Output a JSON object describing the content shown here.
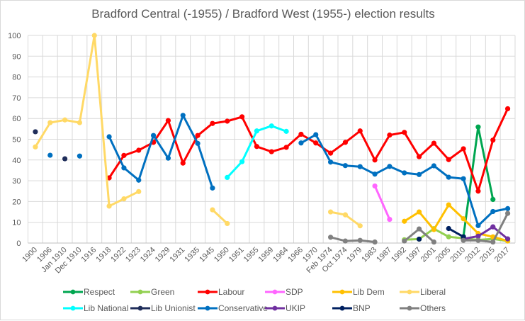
{
  "chart_data": {
    "type": "line",
    "title": "Bradford Central (-1955) / Bradford West (1955-) election results",
    "xlabel": "",
    "ylabel": "",
    "ylim": [
      0,
      100
    ],
    "yticks": [
      0,
      10,
      20,
      30,
      40,
      50,
      60,
      70,
      80,
      90,
      100
    ],
    "grid": true,
    "legend_position": "bottom",
    "categories": [
      "1900",
      "1906",
      "Jan 1910",
      "Dec 1910",
      "1916",
      "1918",
      "1922",
      "1923",
      "1924",
      "1929",
      "1931",
      "1935",
      "1945",
      "1950",
      "1951",
      "1955",
      "1959",
      "1964",
      "1966",
      "1970",
      "Feb 1974",
      "Oct 1974",
      "1979",
      "1983",
      "1987",
      "1992",
      "1997",
      "2001",
      "2005",
      "2010",
      "2012",
      "2015",
      "2017"
    ],
    "series": [
      {
        "name": "Respect",
        "color": "#00a650",
        "values": [
          null,
          null,
          null,
          null,
          null,
          null,
          null,
          null,
          null,
          null,
          null,
          null,
          null,
          null,
          null,
          null,
          null,
          null,
          null,
          null,
          null,
          null,
          null,
          null,
          null,
          null,
          null,
          null,
          null,
          3.1,
          55.9,
          21.0,
          null
        ]
      },
      {
        "name": "Green",
        "color": "#92d050",
        "values": [
          null,
          null,
          null,
          null,
          null,
          null,
          null,
          null,
          null,
          null,
          null,
          null,
          null,
          null,
          null,
          null,
          null,
          null,
          null,
          null,
          null,
          null,
          null,
          null,
          null,
          1.6,
          1.9,
          6.9,
          3.0,
          2.3,
          1.5,
          2.0,
          1.0
        ]
      },
      {
        "name": "Labour",
        "color": "#ff0000",
        "values": [
          null,
          null,
          null,
          null,
          null,
          31.4,
          42.2,
          44.7,
          48.5,
          59.0,
          38.5,
          51.8,
          57.6,
          58.7,
          60.8,
          46.5,
          44.0,
          46.1,
          52.4,
          48.2,
          43.3,
          48.5,
          54.0,
          40.0,
          52.0,
          53.3,
          41.6,
          48.1,
          40.2,
          45.4,
          25.0,
          49.6,
          64.7
        ]
      },
      {
        "name": "SDP",
        "color": "#ff66ff",
        "values": [
          null,
          null,
          null,
          null,
          null,
          null,
          null,
          null,
          null,
          null,
          null,
          null,
          null,
          null,
          null,
          null,
          null,
          null,
          null,
          null,
          null,
          null,
          null,
          27.5,
          11.4,
          null,
          null,
          null,
          null,
          null,
          null,
          null,
          null
        ]
      },
      {
        "name": "Lib Dem",
        "color": "#ffc000",
        "values": [
          null,
          null,
          null,
          null,
          null,
          null,
          null,
          null,
          null,
          null,
          null,
          null,
          null,
          null,
          null,
          null,
          null,
          null,
          null,
          null,
          null,
          null,
          null,
          null,
          null,
          10.5,
          15.0,
          6.5,
          18.4,
          11.7,
          4.6,
          3.0,
          1.0
        ]
      },
      {
        "name": "Liberal",
        "color": "#ffd966",
        "values": [
          46.3,
          58.0,
          59.3,
          58.0,
          100,
          17.8,
          21.3,
          24.8,
          null,
          null,
          null,
          null,
          16.0,
          9.4,
          null,
          null,
          null,
          null,
          null,
          null,
          15.0,
          13.6,
          8.3,
          null,
          null,
          null,
          null,
          null,
          null,
          null,
          null,
          null,
          null
        ]
      },
      {
        "name": "Lib National",
        "color": "#00ffff",
        "values": [
          null,
          null,
          null,
          null,
          null,
          null,
          null,
          null,
          null,
          null,
          null,
          null,
          null,
          31.6,
          39.2,
          54.0,
          56.4,
          53.8,
          null,
          null,
          null,
          null,
          null,
          null,
          null,
          null,
          null,
          null,
          null,
          null,
          null,
          null,
          null
        ]
      },
      {
        "name": "Lib Unionist",
        "color": "#1f2d5a",
        "values": [
          53.6,
          null,
          40.6,
          null,
          null,
          null,
          null,
          null,
          null,
          null,
          null,
          null,
          null,
          null,
          null,
          null,
          null,
          null,
          null,
          null,
          null,
          null,
          null,
          null,
          null,
          null,
          null,
          null,
          null,
          null,
          null,
          null,
          null
        ]
      },
      {
        "name": "Conservative",
        "color": "#0070c0",
        "values": [
          null,
          42.3,
          null,
          41.9,
          null,
          51.2,
          36.2,
          30.3,
          51.8,
          40.9,
          61.5,
          48.0,
          26.5,
          null,
          null,
          null,
          null,
          null,
          48.2,
          52.2,
          39.0,
          37.3,
          36.8,
          33.2,
          36.9,
          33.8,
          33.0,
          37.2,
          31.7,
          31.0,
          8.4,
          15.2,
          16.6
        ]
      },
      {
        "name": "UKIP",
        "color": "#7030a0",
        "values": [
          null,
          null,
          null,
          null,
          null,
          null,
          null,
          null,
          null,
          null,
          null,
          null,
          null,
          null,
          null,
          null,
          null,
          null,
          null,
          null,
          null,
          null,
          null,
          null,
          null,
          null,
          null,
          null,
          null,
          2.0,
          3.3,
          7.8,
          2.0
        ]
      },
      {
        "name": "BNP",
        "color": "#002060",
        "values": [
          null,
          null,
          null,
          null,
          null,
          null,
          null,
          null,
          null,
          null,
          null,
          null,
          null,
          null,
          null,
          null,
          null,
          null,
          null,
          null,
          null,
          null,
          null,
          null,
          null,
          null,
          1.9,
          null,
          7.0,
          3.0,
          null,
          null,
          null
        ]
      },
      {
        "name": "Others",
        "color": "#808080",
        "values": [
          null,
          null,
          null,
          null,
          null,
          null,
          null,
          null,
          null,
          null,
          null,
          null,
          null,
          null,
          null,
          null,
          null,
          null,
          null,
          null,
          2.8,
          1.0,
          1.3,
          0.5,
          null,
          1.0,
          6.8,
          0.5,
          null,
          1.3,
          1.3,
          0.5,
          14.3
        ]
      }
    ]
  }
}
